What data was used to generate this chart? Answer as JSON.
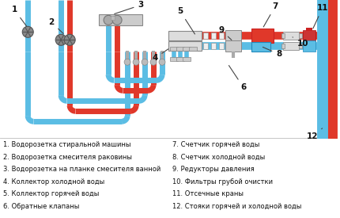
{
  "bg_color": "#ffffff",
  "hot_color": "#e0382a",
  "cold_color": "#5bbde4",
  "legend_left": [
    "1. Водорозетка стиральной машины",
    "2. Водорозетка смесителя раковины",
    "3. Водорозетка на планке смесителя ванной",
    "4. Коллектор холодной воды",
    "5. Коллектор горячей воды",
    "6. Обратные клапаны"
  ],
  "legend_right": [
    "7. Счетчик горячей воды",
    "8. Счетчик холодной воды",
    "9. Редукторы давления",
    "10. Фильтры грубой очистки",
    "11. Отсечные краны",
    "12. Стояки горячей и холодной воды"
  ],
  "font_size": 6.0,
  "label_font_size": 7.5
}
